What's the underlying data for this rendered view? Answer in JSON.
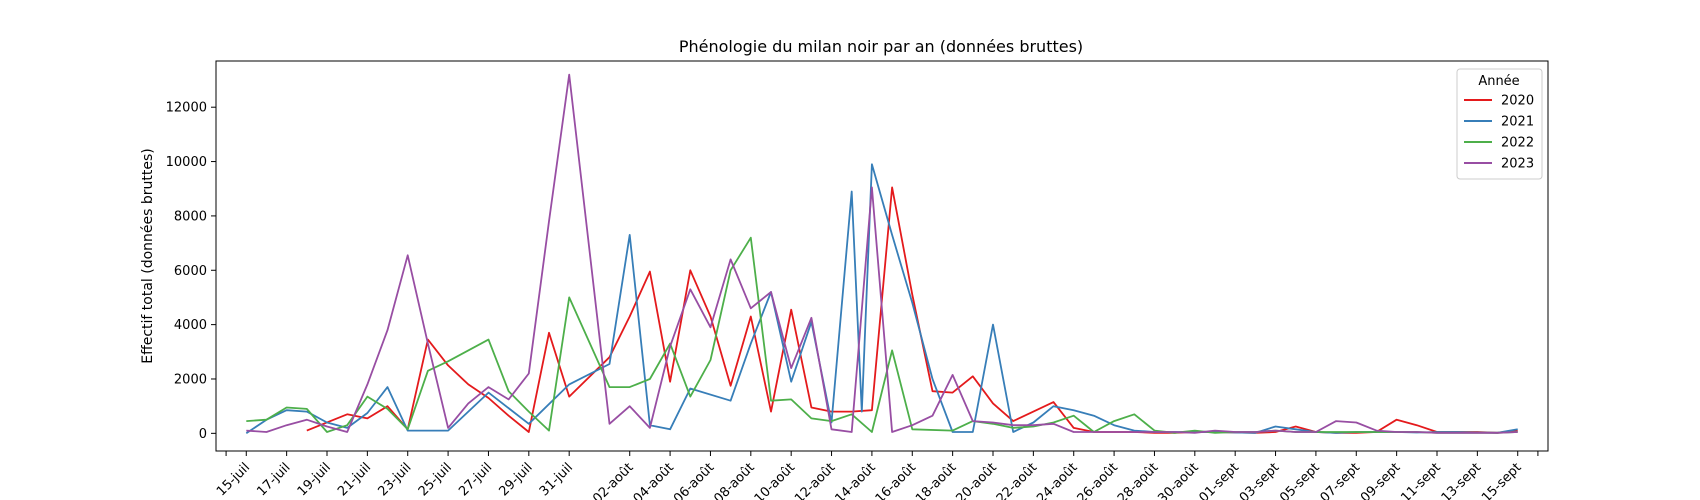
{
  "chart_data": {
    "type": "line",
    "title": "Phénologie du milan noir par an (données bruttes)",
    "xlabel": "",
    "ylabel": "Effectif total (données bruttes)",
    "ylim": [
      -650,
      13700
    ],
    "yticks": [
      0,
      2000,
      4000,
      6000,
      8000,
      10000,
      12000
    ],
    "x_start": "15-juil",
    "x_end": "15-sept",
    "xticks": [
      "15-juil",
      "17-juil",
      "19-juil",
      "21-juil",
      "23-juil",
      "25-juil",
      "27-juil",
      "29-juil",
      "31-juil",
      "02-août",
      "04-août",
      "06-août",
      "08-août",
      "10-août",
      "12-août",
      "14-août",
      "16-août",
      "18-août",
      "20-août",
      "22-août",
      "24-août",
      "26-août",
      "28-août",
      "30-août",
      "01-sept",
      "03-sept",
      "05-sept",
      "07-sept",
      "09-sept",
      "11-sept",
      "13-sept",
      "15-sept"
    ],
    "legend": {
      "title": "Année",
      "position": "top-right"
    },
    "grid": false,
    "series": [
      {
        "name": "2020",
        "color": "#e41a1c",
        "points": [
          [
            "18-juil",
            100
          ],
          [
            "20-juil",
            700
          ],
          [
            "21-juil",
            550
          ],
          [
            "22-juil",
            1000
          ],
          [
            "23-juil",
            150
          ],
          [
            "24-juil",
            3450
          ],
          [
            "25-juil",
            2500
          ],
          [
            "26-juil",
            1800
          ],
          [
            "27-juil",
            1300
          ],
          [
            "28-juil",
            650
          ],
          [
            "29-juil",
            50
          ],
          [
            "30-juil",
            3700
          ],
          [
            "31-juil",
            1350
          ],
          [
            "01-août",
            2800
          ],
          [
            "02-août",
            4300
          ],
          [
            "03-août",
            5950
          ],
          [
            "04-août",
            1900
          ],
          [
            "05-août",
            6000
          ],
          [
            "06-août",
            4300
          ],
          [
            "07-août",
            1750
          ],
          [
            "08-août",
            4300
          ],
          [
            "09-août",
            800
          ],
          [
            "10-août",
            4550
          ],
          [
            "11-août",
            950
          ],
          [
            "12-août",
            800
          ],
          [
            "13-août",
            800
          ],
          [
            "14-août",
            850
          ],
          [
            "15-août",
            9050
          ],
          [
            "16-août",
            5100
          ],
          [
            "17-août",
            1550
          ],
          [
            "18-août",
            1500
          ],
          [
            "19-août",
            2100
          ],
          [
            "20-août",
            1100
          ],
          [
            "21-août",
            450
          ],
          [
            "22-août",
            800
          ],
          [
            "23-août",
            1150
          ],
          [
            "24-août",
            200
          ],
          [
            "25-août",
            50
          ],
          [
            "26-août",
            50
          ],
          [
            "27-août",
            50
          ],
          [
            "28-août",
            20
          ],
          [
            "29-août",
            20
          ],
          [
            "30-août",
            50
          ],
          [
            "31-août",
            50
          ],
          [
            "01-sept",
            30
          ],
          [
            "02-sept",
            20
          ],
          [
            "03-sept",
            50
          ],
          [
            "04-sept",
            250
          ],
          [
            "05-sept",
            50
          ],
          [
            "06-sept",
            20
          ],
          [
            "07-sept",
            20
          ],
          [
            "08-sept",
            50
          ],
          [
            "09-sept",
            500
          ],
          [
            "10-sept",
            300
          ],
          [
            "11-sept",
            50
          ],
          [
            "12-sept",
            50
          ],
          [
            "13-sept",
            50
          ],
          [
            "14-sept",
            20
          ],
          [
            "15-sept",
            100
          ]
        ]
      },
      {
        "name": "2021",
        "color": "#377eb8",
        "points": [
          [
            "15-juil",
            0
          ],
          [
            "16-juil",
            500
          ],
          [
            "17-juil",
            850
          ],
          [
            "18-juil",
            800
          ],
          [
            "19-juil",
            400
          ],
          [
            "20-juil",
            200
          ],
          [
            "21-juil",
            750
          ],
          [
            "22-juil",
            1700
          ],
          [
            "23-juil",
            100
          ],
          [
            "25-juil",
            100
          ],
          [
            "27-juil",
            1500
          ],
          [
            "29-juil",
            350
          ],
          [
            "31-juil",
            1800
          ],
          [
            "01-août",
            2550
          ],
          [
            "02-août",
            7300
          ],
          [
            "03-août",
            300
          ],
          [
            "04-août",
            150
          ],
          [
            "05-août",
            1650
          ],
          [
            "07-août",
            1200
          ],
          [
            "08-août",
            3300
          ],
          [
            "09-août",
            5200
          ],
          [
            "10-août",
            1900
          ],
          [
            "11-août",
            4100
          ],
          [
            "12-août",
            400
          ],
          [
            "13-août",
            8900
          ],
          [
            "13.5-août",
            800
          ],
          [
            "14-août",
            9900
          ],
          [
            "15-août",
            7300
          ],
          [
            "16-août",
            4800
          ],
          [
            "17-août",
            2000
          ],
          [
            "18-août",
            50
          ],
          [
            "19-août",
            50
          ],
          [
            "20-août",
            4000
          ],
          [
            "21-août",
            50
          ],
          [
            "22-août",
            400
          ],
          [
            "23-août",
            1000
          ],
          [
            "24-août",
            850
          ],
          [
            "25-août",
            650
          ],
          [
            "26-août",
            300
          ],
          [
            "27-août",
            100
          ],
          [
            "28-août",
            50
          ],
          [
            "29-août",
            50
          ],
          [
            "30-août",
            50
          ],
          [
            "31-août",
            50
          ],
          [
            "01-sept",
            30
          ],
          [
            "02-sept",
            20
          ],
          [
            "03-sept",
            250
          ],
          [
            "04-sept",
            150
          ],
          [
            "05-sept",
            50
          ],
          [
            "06-sept",
            20
          ],
          [
            "07-sept",
            50
          ],
          [
            "08-sept",
            50
          ],
          [
            "09-sept",
            50
          ],
          [
            "10-sept",
            30
          ],
          [
            "11-sept",
            50
          ],
          [
            "12-sept",
            50
          ],
          [
            "13-sept",
            30
          ],
          [
            "14-sept",
            20
          ],
          [
            "15-sept",
            150
          ]
        ]
      },
      {
        "name": "2022",
        "color": "#4daf4a",
        "points": [
          [
            "15-juil",
            450
          ],
          [
            "16-juil",
            500
          ],
          [
            "17-juil",
            950
          ],
          [
            "18-juil",
            900
          ],
          [
            "19-juil",
            50
          ],
          [
            "20-juil",
            300
          ],
          [
            "21-juil",
            1350
          ],
          [
            "22-juil",
            900
          ],
          [
            "23-juil",
            150
          ],
          [
            "24-juil",
            2300
          ],
          [
            "25-juil",
            2650
          ],
          [
            "26-juil",
            3050
          ],
          [
            "27-juil",
            3450
          ],
          [
            "28-juil",
            1550
          ],
          [
            "29-juil",
            800
          ],
          [
            "30-juil",
            100
          ],
          [
            "31-juil",
            5000
          ],
          [
            "01-août",
            1700
          ],
          [
            "02-août",
            1700
          ],
          [
            "03-août",
            2000
          ],
          [
            "04-août",
            3300
          ],
          [
            "05-août",
            1350
          ],
          [
            "06-août",
            2700
          ],
          [
            "07-août",
            6000
          ],
          [
            "08-août",
            7200
          ],
          [
            "09-août",
            1200
          ],
          [
            "10-août",
            1250
          ],
          [
            "11-août",
            550
          ],
          [
            "12-août",
            450
          ],
          [
            "13-août",
            700
          ],
          [
            "14-août",
            50
          ],
          [
            "15-août",
            3050
          ],
          [
            "16-août",
            150
          ],
          [
            "18-août",
            100
          ],
          [
            "19-août",
            450
          ],
          [
            "20-août",
            350
          ],
          [
            "21-août",
            200
          ],
          [
            "22-août",
            250
          ],
          [
            "23-août",
            400
          ],
          [
            "24-août",
            650
          ],
          [
            "25-août",
            50
          ],
          [
            "26-août",
            450
          ],
          [
            "27-août",
            700
          ],
          [
            "28-août",
            100
          ],
          [
            "29-août",
            20
          ],
          [
            "30-août",
            100
          ],
          [
            "31-août",
            20
          ],
          [
            "01-sept",
            50
          ],
          [
            "02-sept",
            50
          ],
          [
            "03-sept",
            100
          ],
          [
            "04-sept",
            50
          ],
          [
            "05-sept",
            50
          ],
          [
            "06-sept",
            50
          ],
          [
            "07-sept",
            50
          ],
          [
            "08-sept",
            50
          ],
          [
            "09-sept",
            50
          ],
          [
            "10-sept",
            50
          ],
          [
            "11-sept",
            20
          ],
          [
            "12-sept",
            20
          ],
          [
            "13-sept",
            20
          ],
          [
            "14-sept",
            20
          ],
          [
            "15-sept",
            50
          ]
        ]
      },
      {
        "name": "2023",
        "color": "#984ea3",
        "points": [
          [
            "15-juil",
            100
          ],
          [
            "16-juil",
            50
          ],
          [
            "17-juil",
            300
          ],
          [
            "18-juil",
            500
          ],
          [
            "19-juil",
            250
          ],
          [
            "20-juil",
            50
          ],
          [
            "21-juil",
            1800
          ],
          [
            "22-juil",
            3800
          ],
          [
            "23-juil",
            6550
          ],
          [
            "24-juil",
            3300
          ],
          [
            "25-juil",
            200
          ],
          [
            "26-juil",
            1100
          ],
          [
            "27-juil",
            1700
          ],
          [
            "28-juil",
            1250
          ],
          [
            "29-juil",
            2200
          ],
          [
            "30-juil",
            7800
          ],
          [
            "31-juil",
            13200
          ],
          [
            "01-août",
            350
          ],
          [
            "02-août",
            1000
          ],
          [
            "03-août",
            200
          ],
          [
            "04-août",
            3200
          ],
          [
            "05-août",
            5300
          ],
          [
            "06-août",
            3900
          ],
          [
            "07-août",
            6400
          ],
          [
            "08-août",
            4600
          ],
          [
            "09-août",
            5200
          ],
          [
            "10-août",
            2400
          ],
          [
            "11-août",
            4250
          ],
          [
            "12-août",
            150
          ],
          [
            "13-août",
            50
          ],
          [
            "14-août",
            9050
          ],
          [
            "15-août",
            50
          ],
          [
            "16-août",
            300
          ],
          [
            "17-août",
            650
          ],
          [
            "18-août",
            2150
          ],
          [
            "19-août",
            450
          ],
          [
            "20-août",
            400
          ],
          [
            "21-août",
            300
          ],
          [
            "22-août",
            300
          ],
          [
            "23-août",
            350
          ],
          [
            "24-août",
            50
          ],
          [
            "25-août",
            50
          ],
          [
            "26-août",
            50
          ],
          [
            "27-août",
            50
          ],
          [
            "28-août",
            50
          ],
          [
            "29-août",
            50
          ],
          [
            "30-août",
            20
          ],
          [
            "31-août",
            100
          ],
          [
            "01-sept",
            50
          ],
          [
            "02-sept",
            50
          ],
          [
            "03-sept",
            100
          ],
          [
            "04-sept",
            50
          ],
          [
            "05-sept",
            50
          ],
          [
            "06-sept",
            450
          ],
          [
            "07-sept",
            400
          ],
          [
            "08-sept",
            100
          ],
          [
            "09-sept",
            50
          ],
          [
            "10-sept",
            50
          ],
          [
            "11-sept",
            20
          ],
          [
            "12-sept",
            20
          ],
          [
            "13-sept",
            20
          ],
          [
            "14-sept",
            20
          ],
          [
            "15-sept",
            50
          ]
        ]
      }
    ]
  }
}
